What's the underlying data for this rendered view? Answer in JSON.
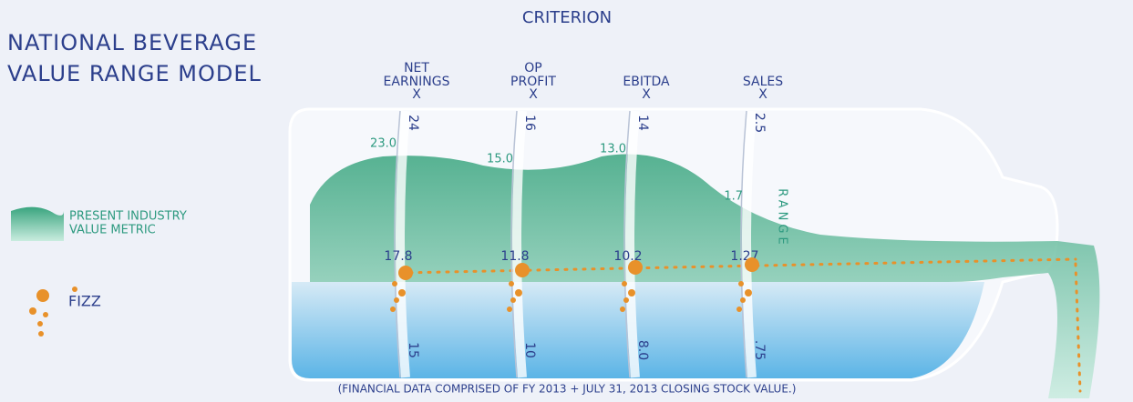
{
  "title": [
    "NATIONAL BEVERAGE",
    "VALUE RANGE MODEL"
  ],
  "header": "CRITERION",
  "legend": {
    "industry": [
      "PRESENT INDUSTRY",
      "VALUE METRIC"
    ],
    "fizz": "FIZZ"
  },
  "range_label": "RANGE",
  "columns": [
    {
      "label": [
        "NET",
        "EARNINGS"
      ],
      "multiplier": "X",
      "top": "24",
      "bottom": "15",
      "industry": "23.0",
      "fizz": "17.8"
    },
    {
      "label": [
        "OP",
        "PROFIT"
      ],
      "multiplier": "X",
      "top": "16",
      "bottom": "10",
      "industry": "15.0",
      "fizz": "11.8"
    },
    {
      "label": [
        "EBITDA"
      ],
      "multiplier": "X",
      "top": "14",
      "bottom": "8.0",
      "industry": "13.0",
      "fizz": "10.2"
    },
    {
      "label": [
        "SALES"
      ],
      "multiplier": "X",
      "top": "2.5",
      "bottom": ".75",
      "industry": "1.7",
      "fizz": "1.27"
    }
  ],
  "footnote": "(FINANCIAL DATA COMPRISED OF FY 2013 + JULY 31, 2013 CLOSING STOCK VALUE.)"
}
